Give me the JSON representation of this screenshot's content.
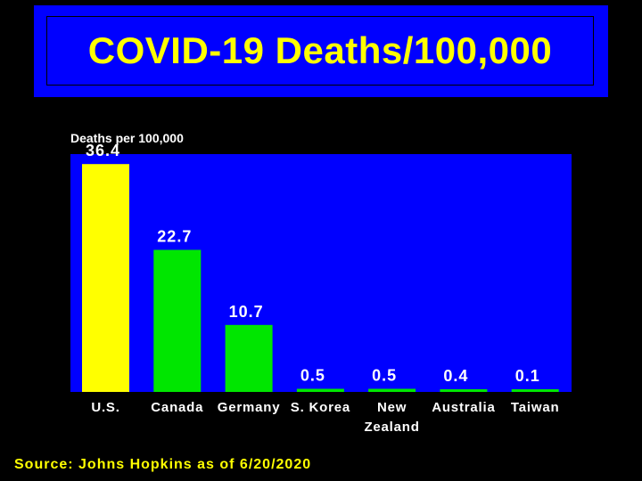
{
  "colors": {
    "title_box": "#0000ff",
    "title_text": "#ffff00",
    "plot_area": "#0000ff",
    "highlight_bar": "#ffff00",
    "bar": "#00e600",
    "text": "#ffffff",
    "source_text": "#ffff00",
    "background": "#000000"
  },
  "chart_data": {
    "type": "bar",
    "title": "COVID-19 Deaths/100,000",
    "ylabel": "Deaths per 100,000",
    "xlabel": "",
    "categories": [
      "U.S.",
      "Canada",
      "Germany",
      "S. Korea",
      "New Zealand",
      "Australia",
      "Taiwan"
    ],
    "values": [
      36.4,
      22.7,
      10.7,
      0.5,
      0.5,
      0.4,
      0.1
    ],
    "data_labels": [
      "36.4",
      "22.7",
      "10.7",
      "0.5",
      "0.5",
      "0.4",
      "0.1"
    ],
    "ylim": [
      0,
      38
    ],
    "grid": false,
    "legend": "none",
    "source": "Source: Johns Hopkins as of 6/20/2020"
  }
}
